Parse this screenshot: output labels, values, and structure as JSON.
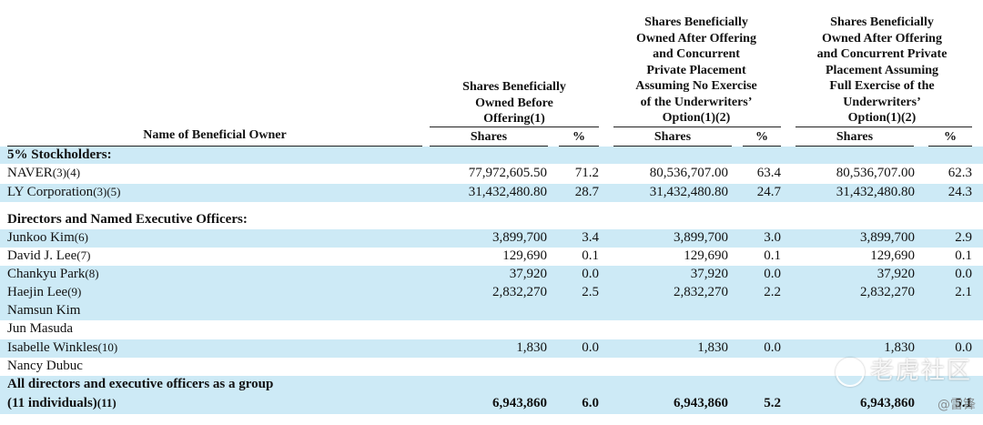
{
  "header": {
    "name_col": "Name of Beneficial Owner",
    "groups": [
      {
        "lines": [
          "Shares Beneficially",
          "Owned Before",
          "Offering(1)"
        ]
      },
      {
        "lines": [
          "Shares Beneficially",
          "Owned After Offering",
          "and Concurrent",
          "Private Placement",
          "Assuming No Exercise",
          "of the Underwriters’",
          "Option(1)(2)"
        ]
      },
      {
        "lines": [
          "Shares Beneficially",
          "Owned After Offering",
          "and Concurrent Private",
          "Placement Assuming",
          "Full Exercise of the",
          "Underwriters’",
          "Option(1)(2)"
        ]
      }
    ],
    "shares_label": "Shares",
    "pct_label": "%"
  },
  "sections": {
    "stockholders": "5% Stockholders:",
    "directors": "Directors and Named Executive Officers:"
  },
  "rows": [
    {
      "name": "NAVER",
      "fn": "(3)(4)",
      "s1": "77,972,605.50",
      "p1": "71.2",
      "s2": "80,536,707.00",
      "p2": "63.4",
      "s3": "80,536,707.00",
      "p3": "62.3"
    },
    {
      "name": "LY Corporation",
      "fn": "(3)(5)",
      "s1": "31,432,480.80",
      "p1": "28.7",
      "s2": "31,432,480.80",
      "p2": "24.7",
      "s3": "31,432,480.80",
      "p3": "24.3"
    },
    {
      "name": "Junkoo Kim",
      "fn": "(6)",
      "s1": "3,899,700",
      "p1": "3.4",
      "s2": "3,899,700",
      "p2": "3.0",
      "s3": "3,899,700",
      "p3": "2.9"
    },
    {
      "name": "David J. Lee",
      "fn": "(7)",
      "s1": "129,690",
      "p1": "0.1",
      "s2": "129,690",
      "p2": "0.1",
      "s3": "129,690",
      "p3": "0.1"
    },
    {
      "name": "Chankyu Park",
      "fn": "(8)",
      "s1": "37,920",
      "p1": "0.0",
      "s2": "37,920",
      "p2": "0.0",
      "s3": "37,920",
      "p3": "0.0"
    },
    {
      "name": "Haejin Lee",
      "fn": "(9)",
      "s1": "2,832,270",
      "p1": "2.5",
      "s2": "2,832,270",
      "p2": "2.2",
      "s3": "2,832,270",
      "p3": "2.1"
    },
    {
      "name": "Namsun Kim",
      "fn": "",
      "s1": "",
      "p1": "",
      "s2": "",
      "p2": "",
      "s3": "",
      "p3": ""
    },
    {
      "name": "Jun Masuda",
      "fn": "",
      "s1": "",
      "p1": "",
      "s2": "",
      "p2": "",
      "s3": "",
      "p3": ""
    },
    {
      "name": "Isabelle Winkles",
      "fn": "(10)",
      "s1": "1,830",
      "p1": "0.0",
      "s2": "1,830",
      "p2": "0.0",
      "s3": "1,830",
      "p3": "0.0"
    },
    {
      "name": "Nancy Dubuc",
      "fn": "",
      "s1": "",
      "p1": "",
      "s2": "",
      "p2": "",
      "s3": "",
      "p3": ""
    }
  ],
  "total": {
    "line1": "All directors and executive officers as a group",
    "line2": "(11 individuals)",
    "fn": "(11)",
    "s1": "6,943,860",
    "p1": "6.0",
    "s2": "6,943,860",
    "p2": "5.2",
    "s3": "6,943,860",
    "p3": "5.1"
  },
  "watermark": "老虎社区",
  "credit": "@雷锋"
}
